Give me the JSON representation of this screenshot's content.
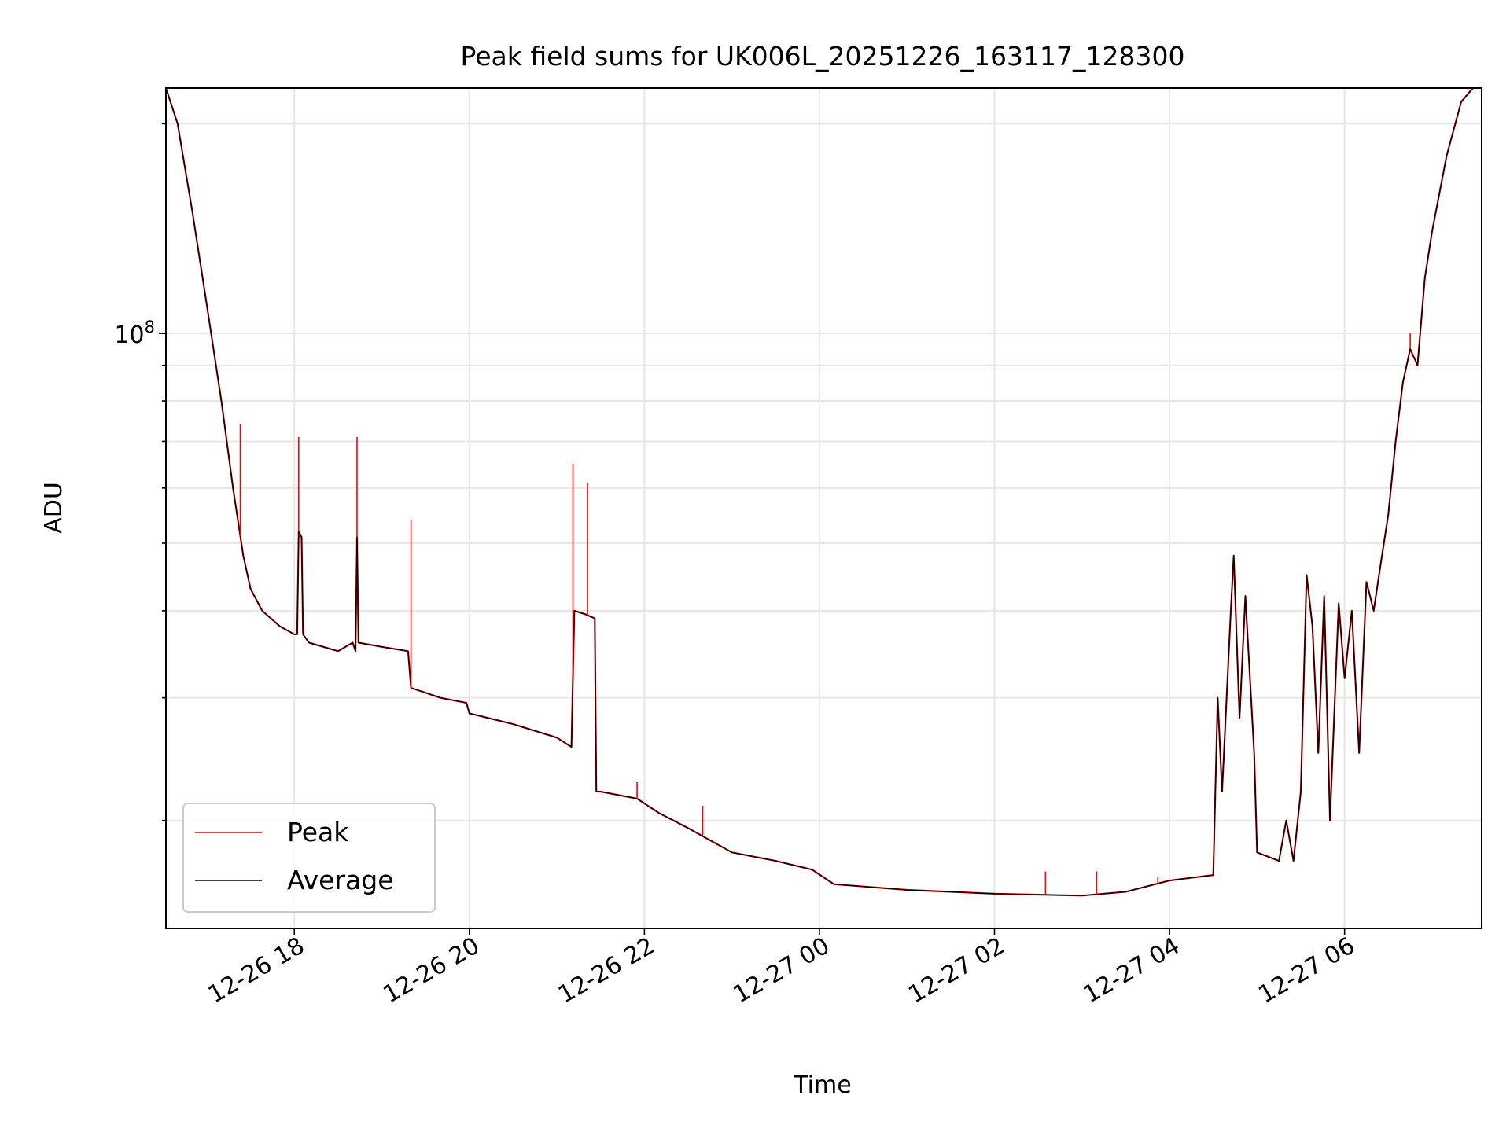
{
  "chart_data": {
    "type": "line",
    "title": "Peak field sums for UK006L_20251226_163117_128300",
    "xlabel": "Time",
    "ylabel": "ADU",
    "yscale": "log",
    "ylim": [
      14000000,
      225000000
    ],
    "xlim": [
      "2025-12-26T16:32",
      "2025-12-27T07:34"
    ],
    "grid": true,
    "legend_position": "lower-left",
    "x_ticks": [
      {
        "time": "2025-12-26T18:00",
        "label": "12-26 18"
      },
      {
        "time": "2025-12-26T20:00",
        "label": "12-26 20"
      },
      {
        "time": "2025-12-26T22:00",
        "label": "12-26 22"
      },
      {
        "time": "2025-12-27T00:00",
        "label": "12-27 00"
      },
      {
        "time": "2025-12-27T02:00",
        "label": "12-27 02"
      },
      {
        "time": "2025-12-27T04:00",
        "label": "12-27 04"
      },
      {
        "time": "2025-12-27T06:00",
        "label": "12-27 06"
      }
    ],
    "y_major_ticks": [
      {
        "value": 100000000,
        "base": "10",
        "exp": "8"
      }
    ],
    "series": [
      {
        "name": "Average",
        "color": "#000000",
        "points": [
          [
            "2025-12-26T16:32",
            225000000
          ],
          [
            "2025-12-26T16:40",
            200000000
          ],
          [
            "2025-12-26T16:50",
            150000000
          ],
          [
            "2025-12-26T17:00",
            110000000
          ],
          [
            "2025-12-26T17:10",
            80000000
          ],
          [
            "2025-12-26T17:18",
            60000000
          ],
          [
            "2025-12-26T17:25",
            48000000
          ],
          [
            "2025-12-26T17:30",
            43000000
          ],
          [
            "2025-12-26T17:38",
            40000000
          ],
          [
            "2025-12-26T17:50",
            38000000
          ],
          [
            "2025-12-26T18:00",
            37000000
          ],
          [
            "2025-12-26T18:02",
            37000000
          ],
          [
            "2025-12-26T18:03",
            52000000
          ],
          [
            "2025-12-26T18:05",
            51000000
          ],
          [
            "2025-12-26T18:06",
            37000000
          ],
          [
            "2025-12-26T18:10",
            36000000
          ],
          [
            "2025-12-26T18:30",
            35000000
          ],
          [
            "2025-12-26T18:40",
            36000000
          ],
          [
            "2025-12-26T18:42",
            35000000
          ],
          [
            "2025-12-26T18:43",
            51000000
          ],
          [
            "2025-12-26T18:44",
            36000000
          ],
          [
            "2025-12-26T19:00",
            35500000
          ],
          [
            "2025-12-26T19:18",
            35000000
          ],
          [
            "2025-12-26T19:20",
            31000000
          ],
          [
            "2025-12-26T19:40",
            30000000
          ],
          [
            "2025-12-26T19:58",
            29500000
          ],
          [
            "2025-12-26T20:00",
            28500000
          ],
          [
            "2025-12-26T20:30",
            27500000
          ],
          [
            "2025-12-26T21:00",
            26300000
          ],
          [
            "2025-12-26T21:10",
            25500000
          ],
          [
            "2025-12-26T21:12",
            40000000
          ],
          [
            "2025-12-26T21:20",
            39500000
          ],
          [
            "2025-12-26T21:26",
            39000000
          ],
          [
            "2025-12-26T21:27",
            22000000
          ],
          [
            "2025-12-26T21:30",
            22000000
          ],
          [
            "2025-12-26T21:55",
            21500000
          ],
          [
            "2025-12-26T22:10",
            20500000
          ],
          [
            "2025-12-26T22:30",
            19500000
          ],
          [
            "2025-12-26T23:00",
            18000000
          ],
          [
            "2025-12-26T23:30",
            17500000
          ],
          [
            "2025-12-26T23:55",
            17000000
          ],
          [
            "2025-12-27T00:10",
            16200000
          ],
          [
            "2025-12-27T01:00",
            15900000
          ],
          [
            "2025-12-27T02:00",
            15700000
          ],
          [
            "2025-12-27T03:00",
            15600000
          ],
          [
            "2025-12-27T03:30",
            15800000
          ],
          [
            "2025-12-27T04:00",
            16400000
          ],
          [
            "2025-12-27T04:30",
            16700000
          ],
          [
            "2025-12-27T04:33",
            30000000
          ],
          [
            "2025-12-27T04:36",
            22000000
          ],
          [
            "2025-12-27T04:42",
            40000000
          ],
          [
            "2025-12-27T04:44",
            48000000
          ],
          [
            "2025-12-27T04:48",
            28000000
          ],
          [
            "2025-12-27T04:52",
            42000000
          ],
          [
            "2025-12-27T04:58",
            25000000
          ],
          [
            "2025-12-27T05:00",
            18000000
          ],
          [
            "2025-12-27T05:15",
            17500000
          ],
          [
            "2025-12-27T05:20",
            20000000
          ],
          [
            "2025-12-27T05:25",
            17500000
          ],
          [
            "2025-12-27T05:30",
            22000000
          ],
          [
            "2025-12-27T05:34",
            45000000
          ],
          [
            "2025-12-27T05:38",
            38000000
          ],
          [
            "2025-12-27T05:42",
            25000000
          ],
          [
            "2025-12-27T05:46",
            42000000
          ],
          [
            "2025-12-27T05:50",
            20000000
          ],
          [
            "2025-12-27T05:56",
            41000000
          ],
          [
            "2025-12-27T06:00",
            32000000
          ],
          [
            "2025-12-27T06:05",
            40000000
          ],
          [
            "2025-12-27T06:10",
            25000000
          ],
          [
            "2025-12-27T06:15",
            44000000
          ],
          [
            "2025-12-27T06:20",
            40000000
          ],
          [
            "2025-12-27T06:25",
            47000000
          ],
          [
            "2025-12-27T06:30",
            55000000
          ],
          [
            "2025-12-27T06:35",
            70000000
          ],
          [
            "2025-12-27T06:40",
            85000000
          ],
          [
            "2025-12-27T06:45",
            95000000
          ],
          [
            "2025-12-27T06:50",
            90000000
          ],
          [
            "2025-12-27T06:55",
            120000000
          ],
          [
            "2025-12-27T07:00",
            140000000
          ],
          [
            "2025-12-27T07:10",
            180000000
          ],
          [
            "2025-12-27T07:20",
            215000000
          ],
          [
            "2025-12-27T07:28",
            225000000
          ]
        ]
      },
      {
        "name": "Peak",
        "color": "#ff0000",
        "spikes": [
          [
            "2025-12-26T17:23",
            74000000
          ],
          [
            "2025-12-26T18:03",
            71000000
          ],
          [
            "2025-12-26T18:43",
            71000000
          ],
          [
            "2025-12-26T19:20",
            54000000
          ],
          [
            "2025-12-26T21:11",
            65000000
          ],
          [
            "2025-12-26T21:21",
            61000000
          ],
          [
            "2025-12-26T21:55",
            22700000
          ],
          [
            "2025-12-26T22:40",
            21000000
          ],
          [
            "2025-12-27T02:35",
            16900000
          ],
          [
            "2025-12-27T03:10",
            16900000
          ],
          [
            "2025-12-27T03:52",
            16600000
          ],
          [
            "2025-12-27T06:45",
            100000000
          ]
        ]
      }
    ]
  }
}
